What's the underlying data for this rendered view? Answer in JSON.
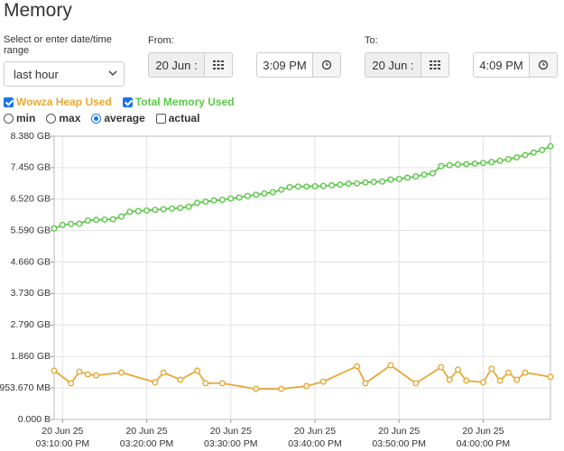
{
  "header": {
    "title": "Memory"
  },
  "controls": {
    "range_label": "Select or enter date/time range",
    "range_value": "last hour",
    "from_label": "From:",
    "from_date": "20 Jun :",
    "from_time": "3:09 PM",
    "to_label": "To:",
    "to_date": "20 Jun :",
    "to_time": "4:09 PM",
    "aggregation": {
      "options": [
        "min",
        "max",
        "average"
      ],
      "selected": "average"
    },
    "actual": {
      "label": "actual",
      "checked": false
    }
  },
  "chart_data": {
    "type": "line",
    "xlim": [
      "2025-06-20T15:09:00",
      "2025-06-20T16:08:00"
    ],
    "xticks": [
      {
        "value": "2025-06-20T15:10:00",
        "label": "20 Jun 25\n03:10:00 PM"
      },
      {
        "value": "2025-06-20T15:20:00",
        "label": "20 Jun 25\n03:20:00 PM"
      },
      {
        "value": "2025-06-20T15:30:00",
        "label": "20 Jun 25\n03:30:00 PM"
      },
      {
        "value": "2025-06-20T15:40:00",
        "label": "20 Jun 25\n03:40:00 PM"
      },
      {
        "value": "2025-06-20T15:50:00",
        "label": "20 Jun 25\n03:50:00 PM"
      },
      {
        "value": "2025-06-20T16:00:00",
        "label": "20 Jun 25\n04:00:00 PM"
      }
    ],
    "ylim": [
      0,
      9000000000.0
    ],
    "yticks": [
      {
        "value": 0,
        "label": "0.000 B"
      },
      {
        "value": 1000000000.0,
        "label": "953.670 MB"
      },
      {
        "value": 2000000000.0,
        "label": "1.860 GB"
      },
      {
        "value": 3000000000.0,
        "label": "2.790 GB"
      },
      {
        "value": 4000000000.0,
        "label": "3.730 GB"
      },
      {
        "value": 5000000000.0,
        "label": "4.660 GB"
      },
      {
        "value": 6000000000.0,
        "label": "5.590 GB"
      },
      {
        "value": 7000000000.0,
        "label": "6.520 GB"
      },
      {
        "value": 8000000000.0,
        "label": "7.450 GB"
      },
      {
        "value": 9000000000.0,
        "label": "8.380 GB"
      }
    ],
    "grid": true,
    "series": [
      {
        "name": "Wowza Heap Used",
        "color": "#e8a838",
        "checked": true,
        "x": [
          "2025-06-20T15:09:00",
          "2025-06-20T15:11:00",
          "2025-06-20T15:12:00",
          "2025-06-20T15:13:00",
          "2025-06-20T15:14:00",
          "2025-06-20T15:17:00",
          "2025-06-20T15:21:00",
          "2025-06-20T15:22:00",
          "2025-06-20T15:24:00",
          "2025-06-20T15:26:00",
          "2025-06-20T15:27:00",
          "2025-06-20T15:29:00",
          "2025-06-20T15:33:00",
          "2025-06-20T15:36:00",
          "2025-06-20T15:39:00",
          "2025-06-20T15:41:00",
          "2025-06-20T15:45:00",
          "2025-06-20T15:46:00",
          "2025-06-20T15:49:00",
          "2025-06-20T15:52:00",
          "2025-06-20T15:55:00",
          "2025-06-20T15:56:00",
          "2025-06-20T15:57:00",
          "2025-06-20T15:58:00",
          "2025-06-20T16:00:00",
          "2025-06-20T16:01:00",
          "2025-06-20T16:02:00",
          "2025-06-20T16:03:00",
          "2025-06-20T16:04:00",
          "2025-06-20T16:05:00",
          "2025-06-20T16:08:00"
        ],
        "values": [
          1550000000.0,
          1150000000.0,
          1520000000.0,
          1430000000.0,
          1400000000.0,
          1490000000.0,
          1180000000.0,
          1490000000.0,
          1260000000.0,
          1550000000.0,
          1150000000.0,
          1150000000.0,
          970000000.0,
          970000000.0,
          1060000000.0,
          1200000000.0,
          1690000000.0,
          1150000000.0,
          1720000000.0,
          1150000000.0,
          1660000000.0,
          1260000000.0,
          1580000000.0,
          1230000000.0,
          1180000000.0,
          1610000000.0,
          1230000000.0,
          1490000000.0,
          1260000000.0,
          1490000000.0,
          1350000000.0
        ]
      },
      {
        "name": "Total Memory Used",
        "color": "#5cc84a",
        "checked": true,
        "x": [
          "2025-06-20T15:09:00",
          "2025-06-20T15:10:00",
          "2025-06-20T15:11:00",
          "2025-06-20T15:12:00",
          "2025-06-20T15:13:00",
          "2025-06-20T15:14:00",
          "2025-06-20T15:15:00",
          "2025-06-20T15:16:00",
          "2025-06-20T15:17:00",
          "2025-06-20T15:18:00",
          "2025-06-20T15:19:00",
          "2025-06-20T15:20:00",
          "2025-06-20T15:21:00",
          "2025-06-20T15:22:00",
          "2025-06-20T15:23:00",
          "2025-06-20T15:24:00",
          "2025-06-20T15:25:00",
          "2025-06-20T15:26:00",
          "2025-06-20T15:27:00",
          "2025-06-20T15:28:00",
          "2025-06-20T15:29:00",
          "2025-06-20T15:30:00",
          "2025-06-20T15:31:00",
          "2025-06-20T15:32:00",
          "2025-06-20T15:33:00",
          "2025-06-20T15:34:00",
          "2025-06-20T15:35:00",
          "2025-06-20T15:36:00",
          "2025-06-20T15:37:00",
          "2025-06-20T15:38:00",
          "2025-06-20T15:39:00",
          "2025-06-20T15:40:00",
          "2025-06-20T15:41:00",
          "2025-06-20T15:42:00",
          "2025-06-20T15:43:00",
          "2025-06-20T15:44:00",
          "2025-06-20T15:45:00",
          "2025-06-20T15:46:00",
          "2025-06-20T15:47:00",
          "2025-06-20T15:48:00",
          "2025-06-20T15:49:00",
          "2025-06-20T15:50:00",
          "2025-06-20T15:51:00",
          "2025-06-20T15:52:00",
          "2025-06-20T15:53:00",
          "2025-06-20T15:54:00",
          "2025-06-20T15:55:00",
          "2025-06-20T15:56:00",
          "2025-06-20T15:57:00",
          "2025-06-20T15:58:00",
          "2025-06-20T15:59:00",
          "2025-06-20T16:00:00",
          "2025-06-20T16:01:00",
          "2025-06-20T16:02:00",
          "2025-06-20T16:03:00",
          "2025-06-20T16:04:00",
          "2025-06-20T16:05:00",
          "2025-06-20T16:06:00",
          "2025-06-20T16:07:00",
          "2025-06-20T16:08:00"
        ],
        "values": [
          6070000000.0,
          6180000000.0,
          6210000000.0,
          6220000000.0,
          6320000000.0,
          6340000000.0,
          6350000000.0,
          6360000000.0,
          6450000000.0,
          6600000000.0,
          6620000000.0,
          6640000000.0,
          6660000000.0,
          6680000000.0,
          6700000000.0,
          6720000000.0,
          6760000000.0,
          6880000000.0,
          6920000000.0,
          6960000000.0,
          6980000000.0,
          7020000000.0,
          7050000000.0,
          7100000000.0,
          7140000000.0,
          7180000000.0,
          7220000000.0,
          7300000000.0,
          7380000000.0,
          7400000000.0,
          7400000000.0,
          7410000000.0,
          7420000000.0,
          7440000000.0,
          7460000000.0,
          7490000000.0,
          7500000000.0,
          7530000000.0,
          7550000000.0,
          7560000000.0,
          7620000000.0,
          7640000000.0,
          7680000000.0,
          7720000000.0,
          7780000000.0,
          7820000000.0,
          8050000000.0,
          8080000000.0,
          8100000000.0,
          8110000000.0,
          8130000000.0,
          8150000000.0,
          8180000000.0,
          8220000000.0,
          8270000000.0,
          8330000000.0,
          8400000000.0,
          8480000000.0,
          8560000000.0,
          8680000000.0
        ]
      }
    ]
  }
}
